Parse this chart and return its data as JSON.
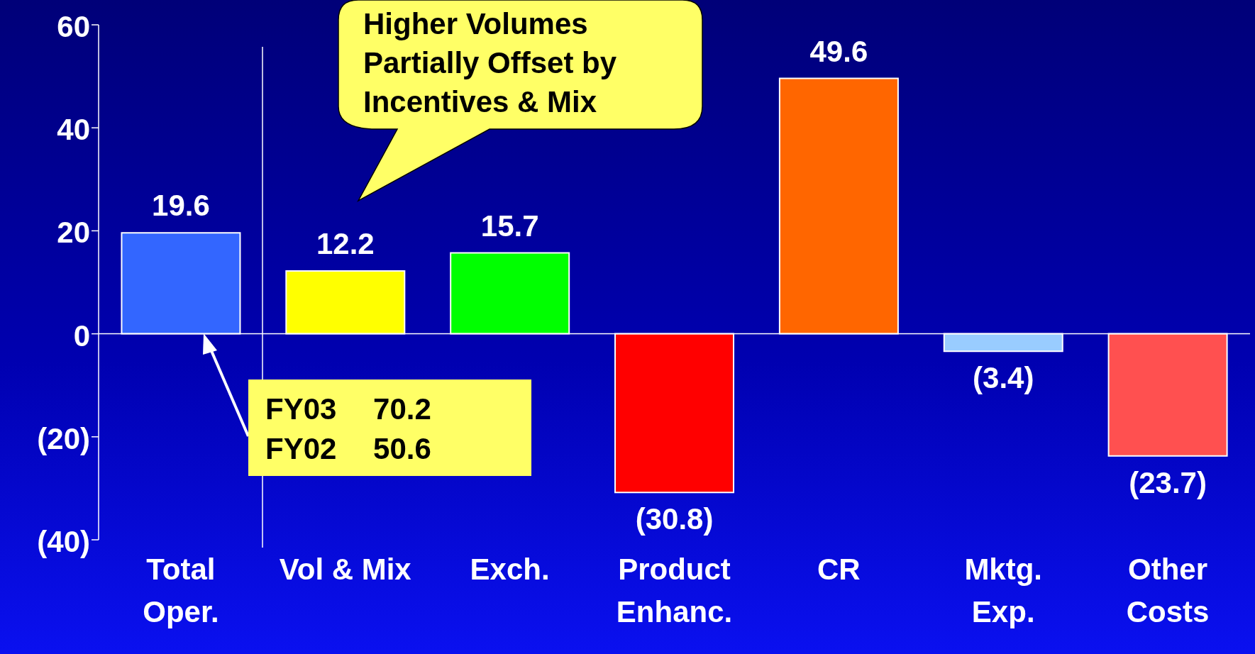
{
  "chart_data": {
    "type": "bar",
    "categories": [
      "Total Oper.",
      "Vol & Mix",
      "Exch.",
      "Product Enhanc.",
      "CR",
      "Mktg. Exp.",
      "Other Costs"
    ],
    "values": [
      19.6,
      12.2,
      15.7,
      -30.8,
      49.6,
      -3.4,
      -23.7
    ],
    "colors": [
      "#3366ff",
      "#ffff00",
      "#00ff00",
      "#ff0000",
      "#ff6600",
      "#99ccff",
      "#ff5050"
    ],
    "value_labels": [
      "19.6",
      "12.2",
      "15.7",
      "(30.8)",
      "49.6",
      "(3.4)",
      "(23.7)"
    ],
    "ylim": [
      -40,
      60
    ],
    "yticks": [
      {
        "value": -40,
        "label": "(40)"
      },
      {
        "value": -20,
        "label": "(20)"
      },
      0,
      20,
      40,
      60
    ],
    "annotations": [
      "Higher Volumes Partially Offset by Incentives & Mix",
      "FY03 70.2",
      "FY02 50.6"
    ],
    "ref_lines": [
      {
        "axis": "y",
        "value": 0,
        "color": "#ffffff"
      }
    ],
    "legend": false
  }
}
